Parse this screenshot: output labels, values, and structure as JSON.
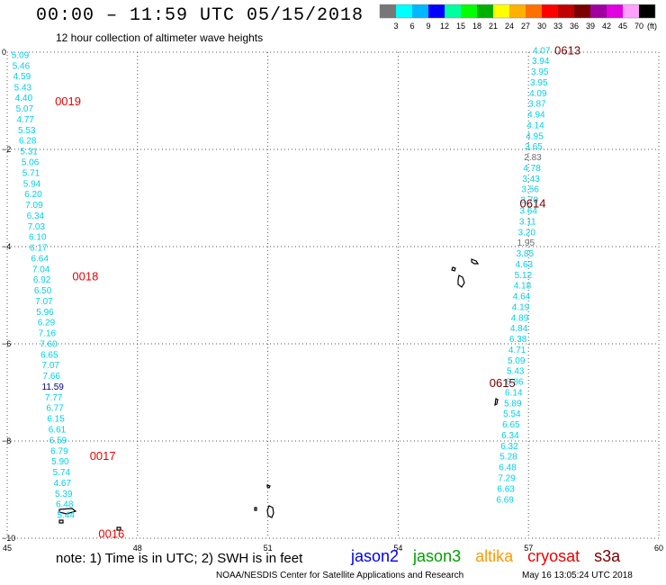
{
  "header": {
    "title": "00:00 – 11:59 UTC 05/15/2018",
    "subtitle": "12 hour collection of altimeter wave heights"
  },
  "colors": {
    "background": "#ffffff",
    "grid": "#555555",
    "cyan_label": "#00d0e8",
    "gray_label": "#6c6c6c",
    "navy_label": "#000080",
    "pass_red": "#ee0000",
    "pass_dark": "#7a0000"
  },
  "legend": {
    "scale_labels": [
      "3",
      "6",
      "9",
      "12",
      "15",
      "18",
      "21",
      "24",
      "27",
      "30",
      "33",
      "36",
      "39",
      "42",
      "45",
      "70"
    ],
    "unit": "(ft)",
    "swatch_colors": [
      "#777777",
      "#00ffff",
      "#00b8ff",
      "#0000ff",
      "#00ffa0",
      "#00ff00",
      "#00b000",
      "#ffff00",
      "#ffb000",
      "#ff7000",
      "#ff0000",
      "#c00000",
      "#7a0000",
      "#a000a0",
      "#e000e0",
      "#ffa0ff",
      "#000000"
    ]
  },
  "footer": {
    "note": "note:  1) Time is in UTC; 2) SWH is in feet",
    "satellites": [
      {
        "name": "jason2",
        "color": "#0000ee"
      },
      {
        "name": "jason3",
        "color": "#00a000"
      },
      {
        "name": "altika",
        "color": "#ff9900"
      },
      {
        "name": "cryosat",
        "color": "#ee0000"
      },
      {
        "name": "s3a",
        "color": "#7a0000"
      }
    ],
    "credit": "NOAA/NESDIS Center for Satellite Applications and Research",
    "timestamp": "May 16 13:05:24 UTC 2018"
  },
  "chart_data": {
    "type": "scatter",
    "title": "00:00 – 11:59 UTC 05/15/2018",
    "subtitle": "12 hour collection of altimeter wave heights",
    "xlim": [
      45,
      60
    ],
    "ylim": [
      -10,
      0
    ],
    "x_ticks": [
      "45",
      "48",
      "51",
      "54",
      "57",
      "60"
    ],
    "y_ticks": [
      "0",
      "−2",
      "−4",
      "−6",
      "−8",
      "−10"
    ],
    "grid": true,
    "pass_labels": [
      {
        "text": "0019",
        "x": 46.1,
        "y": -1.0,
        "satellite": "cryosat"
      },
      {
        "text": "0018",
        "x": 46.5,
        "y": -4.6,
        "satellite": "cryosat"
      },
      {
        "text": "0017",
        "x": 46.9,
        "y": -8.3,
        "satellite": "cryosat"
      },
      {
        "text": "0016",
        "x": 47.1,
        "y": -9.9,
        "satellite": "cryosat"
      },
      {
        "text": "0613",
        "x": 57.6,
        "y": 0.05,
        "satellite": "s3a"
      },
      {
        "text": "0614",
        "x": 56.8,
        "y": -3.1,
        "satellite": "s3a"
      },
      {
        "text": "0615",
        "x": 56.1,
        "y": -6.8,
        "satellite": "s3a"
      }
    ],
    "series": [
      {
        "satellite": "cryosat",
        "points": [
          {
            "x": 45.3,
            "y": -0.05,
            "swh": "5.09",
            "color": "cyan"
          },
          {
            "x": 45.32,
            "y": -0.27,
            "swh": "5.46",
            "color": "cyan"
          },
          {
            "x": 45.34,
            "y": -0.48,
            "swh": "4.59",
            "color": "cyan"
          },
          {
            "x": 45.36,
            "y": -0.71,
            "swh": "5.43",
            "color": "cyan"
          },
          {
            "x": 45.38,
            "y": -0.93,
            "swh": "4.40",
            "color": "cyan"
          },
          {
            "x": 45.4,
            "y": -1.15,
            "swh": "5.07",
            "color": "cyan"
          },
          {
            "x": 45.42,
            "y": -1.37,
            "swh": "4.77",
            "color": "cyan"
          },
          {
            "x": 45.45,
            "y": -1.59,
            "swh": "5.53",
            "color": "cyan"
          },
          {
            "x": 45.47,
            "y": -1.81,
            "swh": "6.28",
            "color": "cyan"
          },
          {
            "x": 45.5,
            "y": -2.03,
            "swh": "5.31",
            "color": "cyan"
          },
          {
            "x": 45.53,
            "y": -2.25,
            "swh": "5.06",
            "color": "cyan"
          },
          {
            "x": 45.55,
            "y": -2.47,
            "swh": "5.71",
            "color": "cyan"
          },
          {
            "x": 45.57,
            "y": -2.69,
            "swh": "5.94",
            "color": "cyan"
          },
          {
            "x": 45.6,
            "y": -2.91,
            "swh": "6.20",
            "color": "cyan"
          },
          {
            "x": 45.62,
            "y": -3.13,
            "swh": "7.09",
            "color": "cyan"
          },
          {
            "x": 45.65,
            "y": -3.35,
            "swh": "6.34",
            "color": "cyan"
          },
          {
            "x": 45.67,
            "y": -3.57,
            "swh": "7.03",
            "color": "cyan"
          },
          {
            "x": 45.7,
            "y": -3.79,
            "swh": "6.10",
            "color": "cyan"
          },
          {
            "x": 45.72,
            "y": -4.01,
            "swh": "6.17",
            "color": "cyan"
          },
          {
            "x": 45.75,
            "y": -4.23,
            "swh": "6.64",
            "color": "cyan"
          },
          {
            "x": 45.78,
            "y": -4.45,
            "swh": "7.04",
            "color": "cyan"
          },
          {
            "x": 45.8,
            "y": -4.67,
            "swh": "6.92",
            "color": "cyan"
          },
          {
            "x": 45.82,
            "y": -4.89,
            "swh": "6.50",
            "color": "cyan"
          },
          {
            "x": 45.85,
            "y": -5.11,
            "swh": "7.07",
            "color": "cyan"
          },
          {
            "x": 45.87,
            "y": -5.33,
            "swh": "5.96",
            "color": "cyan"
          },
          {
            "x": 45.9,
            "y": -5.55,
            "swh": "6.29",
            "color": "cyan"
          },
          {
            "x": 45.92,
            "y": -5.77,
            "swh": "7.16",
            "color": "cyan"
          },
          {
            "x": 45.95,
            "y": -5.99,
            "swh": "7.60",
            "color": "cyan"
          },
          {
            "x": 45.97,
            "y": -6.21,
            "swh": "6.65",
            "color": "cyan"
          },
          {
            "x": 46.0,
            "y": -6.43,
            "swh": "7.07",
            "color": "cyan"
          },
          {
            "x": 46.02,
            "y": -6.65,
            "swh": "7.66",
            "color": "cyan"
          },
          {
            "x": 46.05,
            "y": -6.87,
            "swh": "11.59",
            "color": "navy"
          },
          {
            "x": 46.07,
            "y": -7.09,
            "swh": "7.77",
            "color": "cyan"
          },
          {
            "x": 46.1,
            "y": -7.31,
            "swh": "6.77",
            "color": "cyan"
          },
          {
            "x": 46.12,
            "y": -7.53,
            "swh": "6.15",
            "color": "cyan"
          },
          {
            "x": 46.15,
            "y": -7.75,
            "swh": "6.61",
            "color": "cyan"
          },
          {
            "x": 46.17,
            "y": -7.97,
            "swh": "6.59",
            "color": "cyan"
          },
          {
            "x": 46.2,
            "y": -8.19,
            "swh": "6.79",
            "color": "cyan"
          },
          {
            "x": 46.22,
            "y": -8.41,
            "swh": "5.90",
            "color": "cyan"
          },
          {
            "x": 46.25,
            "y": -8.63,
            "swh": "5.74",
            "color": "cyan"
          },
          {
            "x": 46.27,
            "y": -8.85,
            "swh": "4.67",
            "color": "cyan"
          },
          {
            "x": 46.3,
            "y": -9.07,
            "swh": "5.39",
            "color": "cyan"
          },
          {
            "x": 46.32,
            "y": -9.29,
            "swh": "6.48",
            "color": "cyan"
          },
          {
            "x": 46.35,
            "y": -9.51,
            "swh": "5.44",
            "color": "cyan"
          }
        ]
      },
      {
        "satellite": "s3a",
        "points": [
          {
            "x": 57.3,
            "y": 0.05,
            "swh": "4.07",
            "color": "cyan"
          },
          {
            "x": 57.28,
            "y": -0.17,
            "swh": "3.94",
            "color": "cyan"
          },
          {
            "x": 57.26,
            "y": -0.39,
            "swh": "3.95",
            "color": "cyan"
          },
          {
            "x": 57.24,
            "y": -0.61,
            "swh": "3.95",
            "color": "cyan"
          },
          {
            "x": 57.22,
            "y": -0.83,
            "swh": "4.09",
            "color": "cyan"
          },
          {
            "x": 57.2,
            "y": -1.05,
            "swh": "3.87",
            "color": "cyan"
          },
          {
            "x": 57.18,
            "y": -1.27,
            "swh": "4.94",
            "color": "cyan"
          },
          {
            "x": 57.16,
            "y": -1.49,
            "swh": "4.14",
            "color": "cyan"
          },
          {
            "x": 57.14,
            "y": -1.71,
            "swh": "4.95",
            "color": "cyan"
          },
          {
            "x": 57.12,
            "y": -1.93,
            "swh": "3.65",
            "color": "cyan"
          },
          {
            "x": 57.1,
            "y": -2.15,
            "swh": "2.83",
            "color": "gray"
          },
          {
            "x": 57.08,
            "y": -2.37,
            "swh": "4.78",
            "color": "cyan"
          },
          {
            "x": 57.06,
            "y": -2.59,
            "swh": "3.43",
            "color": "cyan"
          },
          {
            "x": 57.04,
            "y": -2.81,
            "swh": "3.56",
            "color": "cyan"
          },
          {
            "x": 57.02,
            "y": -3.03,
            "swh": "3.70",
            "color": "cyan"
          },
          {
            "x": 57.0,
            "y": -3.25,
            "swh": "3.64",
            "color": "cyan"
          },
          {
            "x": 56.98,
            "y": -3.47,
            "swh": "3.11",
            "color": "cyan"
          },
          {
            "x": 56.96,
            "y": -3.69,
            "swh": "3.20",
            "color": "cyan"
          },
          {
            "x": 56.94,
            "y": -3.91,
            "swh": "1.95",
            "color": "gray"
          },
          {
            "x": 56.92,
            "y": -4.13,
            "swh": "3.85",
            "color": "cyan"
          },
          {
            "x": 56.9,
            "y": -4.35,
            "swh": "4.63",
            "color": "cyan"
          },
          {
            "x": 56.88,
            "y": -4.57,
            "swh": "5.12",
            "color": "cyan"
          },
          {
            "x": 56.86,
            "y": -4.79,
            "swh": "4.18",
            "color": "cyan"
          },
          {
            "x": 56.84,
            "y": -5.01,
            "swh": "4.64",
            "color": "cyan"
          },
          {
            "x": 56.82,
            "y": -5.23,
            "swh": "4.19",
            "color": "cyan"
          },
          {
            "x": 56.8,
            "y": -5.45,
            "swh": "4.89",
            "color": "cyan"
          },
          {
            "x": 56.78,
            "y": -5.67,
            "swh": "4.84",
            "color": "cyan"
          },
          {
            "x": 56.76,
            "y": -5.89,
            "swh": "6.38",
            "color": "cyan"
          },
          {
            "x": 56.74,
            "y": -6.11,
            "swh": "4.71",
            "color": "cyan"
          },
          {
            "x": 56.72,
            "y": -6.33,
            "swh": "5.09",
            "color": "cyan"
          },
          {
            "x": 56.7,
            "y": -6.55,
            "swh": "5.43",
            "color": "cyan"
          },
          {
            "x": 56.68,
            "y": -6.77,
            "swh": "6.86",
            "color": "cyan"
          },
          {
            "x": 56.66,
            "y": -6.99,
            "swh": "6.14",
            "color": "cyan"
          },
          {
            "x": 56.64,
            "y": -7.21,
            "swh": "5.89",
            "color": "cyan"
          },
          {
            "x": 56.62,
            "y": -7.43,
            "swh": "5.54",
            "color": "cyan"
          },
          {
            "x": 56.6,
            "y": -7.65,
            "swh": "6.65",
            "color": "cyan"
          },
          {
            "x": 56.58,
            "y": -7.87,
            "swh": "6.34",
            "color": "cyan"
          },
          {
            "x": 56.56,
            "y": -8.09,
            "swh": "6.32",
            "color": "cyan"
          },
          {
            "x": 56.54,
            "y": -8.31,
            "swh": "5.28",
            "color": "cyan"
          },
          {
            "x": 56.52,
            "y": -8.53,
            "swh": "6.48",
            "color": "cyan"
          },
          {
            "x": 56.5,
            "y": -8.75,
            "swh": "7.29",
            "color": "cyan"
          },
          {
            "x": 56.48,
            "y": -8.97,
            "swh": "6.63",
            "color": "cyan"
          },
          {
            "x": 56.46,
            "y": -9.19,
            "swh": "6.69",
            "color": "cyan"
          }
        ]
      }
    ]
  }
}
